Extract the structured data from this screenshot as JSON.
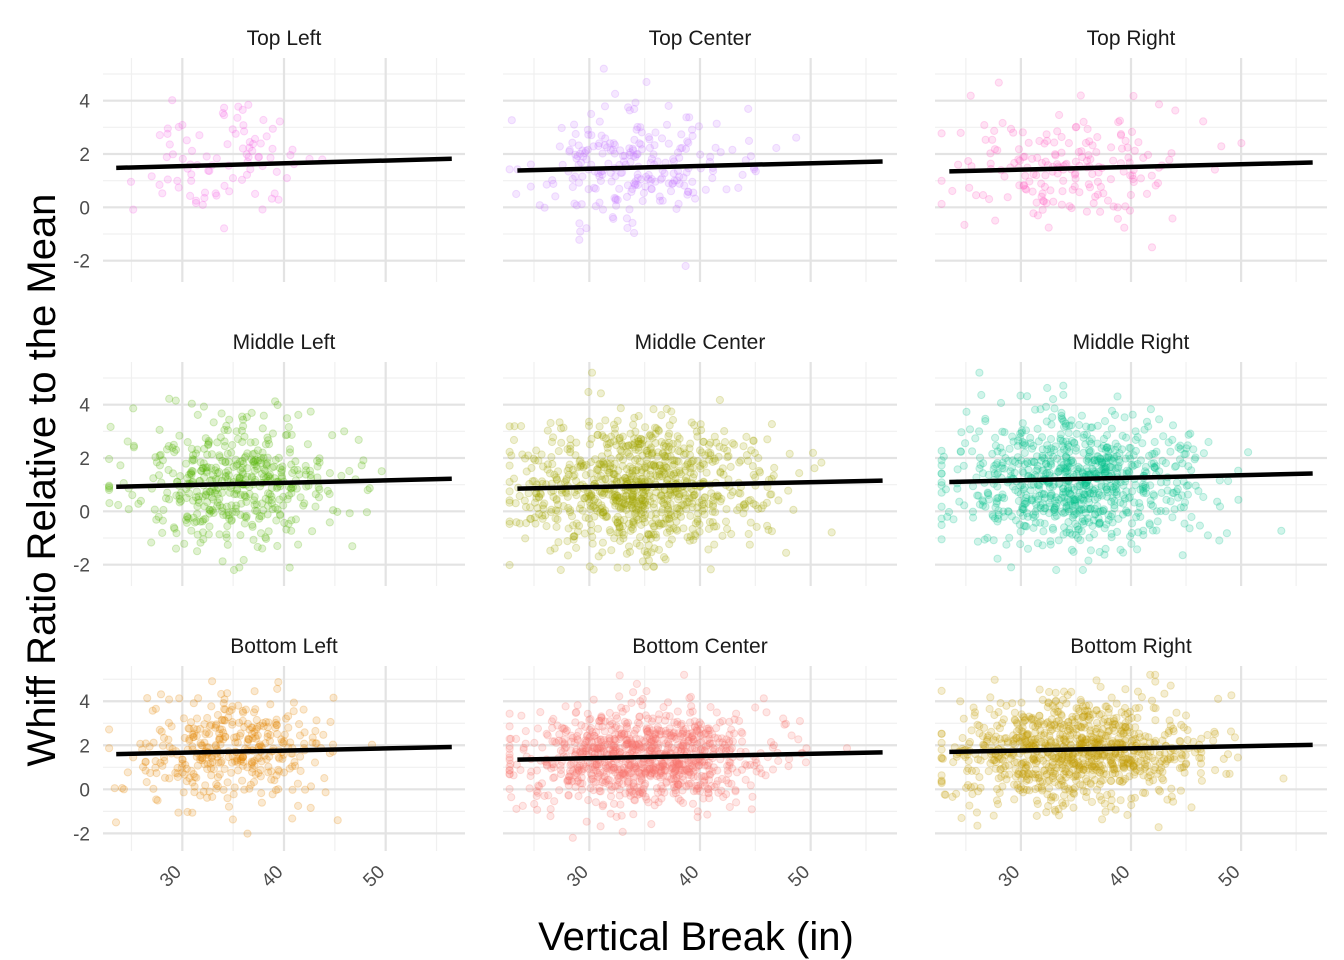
{
  "chart_data": {
    "type": "scatter",
    "xlabel": "Vertical Break (in)",
    "ylabel": "Whiff Ratio Relative to the Mean",
    "xlim": [
      22.2,
      57.8
    ],
    "ylim": [
      -2.8,
      5.6
    ],
    "x_ticks": [
      30,
      40,
      50
    ],
    "x_tick_labels": [
      "30",
      "40",
      "50"
    ],
    "x_minor_ticks": [
      25,
      35,
      45,
      55
    ],
    "y_ticks": [
      -2,
      0,
      2,
      4
    ],
    "y_tick_labels": [
      "-2",
      "0",
      "2",
      "4"
    ],
    "y_minor_ticks": [
      -1,
      1,
      3,
      5
    ],
    "grid": true,
    "legend": "none",
    "point_opacity": 0.18,
    "panels": [
      {
        "title": "Top Left",
        "color": "#F564E3",
        "n_points": 90,
        "x_center": 34,
        "x_spread": 4.5,
        "y_center": 1.6,
        "y_spread": 1.1,
        "trend": {
          "x": [
            23.5,
            56.5
          ],
          "y": [
            1.48,
            1.82
          ]
        }
      },
      {
        "title": "Top Center",
        "color": "#C77CFF",
        "n_points": 240,
        "x_center": 34,
        "x_spread": 5,
        "y_center": 1.5,
        "y_spread": 1.1,
        "trend": {
          "x": [
            23.5,
            56.5
          ],
          "y": [
            1.38,
            1.72
          ]
        }
      },
      {
        "title": "Top Right",
        "color": "#FF61C3",
        "n_points": 190,
        "x_center": 34,
        "x_spread": 5,
        "y_center": 1.4,
        "y_spread": 1.1,
        "trend": {
          "x": [
            23.5,
            56.5
          ],
          "y": [
            1.35,
            1.68
          ]
        }
      },
      {
        "title": "Middle Left",
        "color": "#53B400",
        "n_points": 480,
        "x_center": 35,
        "x_spread": 5,
        "y_center": 1.0,
        "y_spread": 1.2,
        "trend": {
          "x": [
            23.5,
            56.5
          ],
          "y": [
            0.92,
            1.22
          ]
        }
      },
      {
        "title": "Middle Center",
        "color": "#A3A500",
        "n_points": 950,
        "x_center": 35,
        "x_spread": 5.5,
        "y_center": 0.9,
        "y_spread": 1.2,
        "trend": {
          "x": [
            23.5,
            56.5
          ],
          "y": [
            0.85,
            1.15
          ]
        }
      },
      {
        "title": "Middle Right",
        "color": "#00C08B",
        "n_points": 850,
        "x_center": 35,
        "x_spread": 5.5,
        "y_center": 1.2,
        "y_spread": 1.2,
        "trend": {
          "x": [
            23.5,
            56.5
          ],
          "y": [
            1.1,
            1.42
          ]
        }
      },
      {
        "title": "Bottom Left",
        "color": "#E58700",
        "n_points": 380,
        "x_center": 35,
        "x_spread": 5,
        "y_center": 1.7,
        "y_spread": 1.2,
        "trend": {
          "x": [
            23.5,
            56.5
          ],
          "y": [
            1.6,
            1.92
          ]
        }
      },
      {
        "title": "Bottom Center",
        "color": "#F8766D",
        "n_points": 1000,
        "x_center": 35,
        "x_spread": 5.5,
        "y_center": 1.4,
        "y_spread": 1.1,
        "trend": {
          "x": [
            23.5,
            56.5
          ],
          "y": [
            1.35,
            1.68
          ]
        }
      },
      {
        "title": "Bottom Right",
        "color": "#C49A00",
        "n_points": 950,
        "x_center": 35,
        "x_spread": 5.5,
        "y_center": 1.8,
        "y_spread": 1.2,
        "trend": {
          "x": [
            23.5,
            56.5
          ],
          "y": [
            1.7,
            2.02
          ]
        }
      }
    ]
  }
}
